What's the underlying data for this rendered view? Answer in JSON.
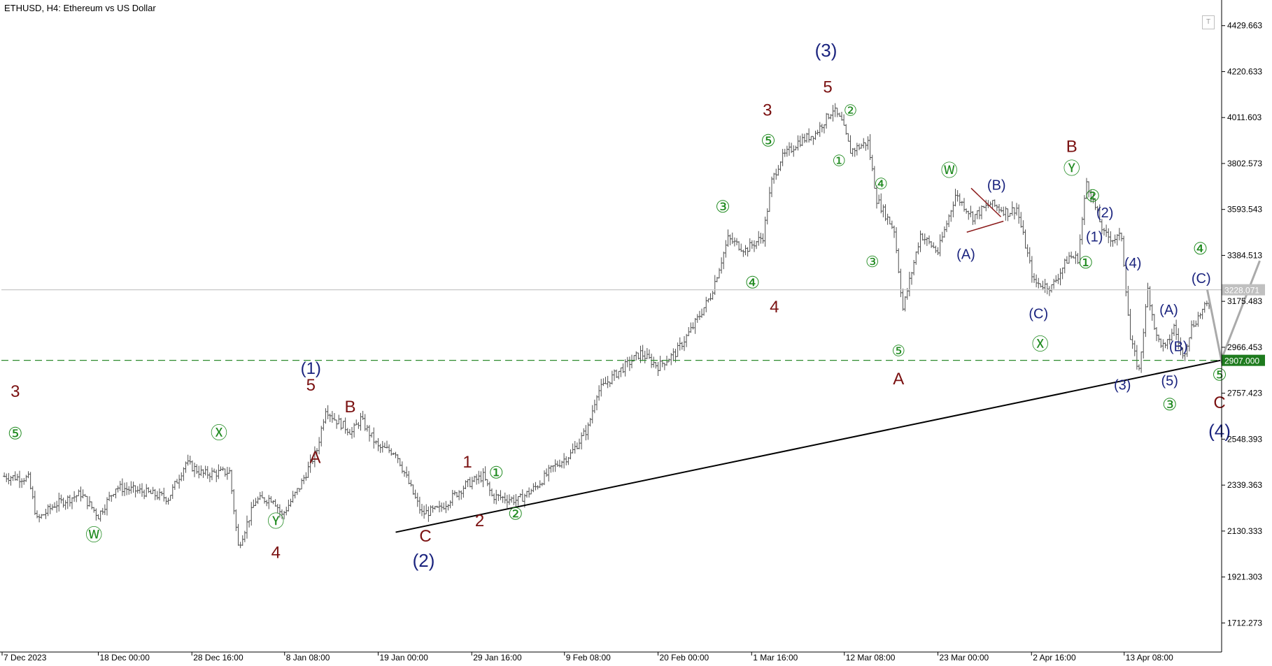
{
  "header": {
    "title": "ETHUSD, H4:  Ethereum vs US Dollar"
  },
  "toolbar": {
    "toggle_label": "T"
  },
  "chart_data": {
    "type": "candlestick",
    "title": "ETHUSD, H4:  Ethereum vs US Dollar",
    "symbol": "ETHUSD",
    "timeframe": "H4",
    "ylim": [
      1580,
      4540
    ],
    "y_ticks": [
      "4429.663",
      "4220.633",
      "4011.603",
      "3802.573",
      "3593.543",
      "3384.513",
      "3175.483",
      "2966.453",
      "2757.423",
      "2548.393",
      "2339.363",
      "2130.333",
      "1921.303",
      "1712.273"
    ],
    "x_ticks": [
      {
        "label": "7 Dec 2023",
        "x": 0
      },
      {
        "label": "18 Dec 00:00",
        "x": 11
      },
      {
        "label": "28 Dec 16:00",
        "x": 21.7
      },
      {
        "label": "8 Jan 08:00",
        "x": 32.3
      },
      {
        "label": "19 Jan 00:00",
        "x": 43
      },
      {
        "label": "29 Jan 16:00",
        "x": 53.7
      },
      {
        "label": "9 Feb 08:00",
        "x": 64.3
      },
      {
        "label": "20 Feb 00:00",
        "x": 75
      },
      {
        "label": "1 Mar 16:00",
        "x": 85.7
      },
      {
        "label": "12 Mar 08:00",
        "x": 96.3
      },
      {
        "label": "23 Mar 00:00",
        "x": 107
      },
      {
        "label": "2 Apr 16:00",
        "x": 117.7
      },
      {
        "label": "13 Apr 08:00",
        "x": 128.3
      }
    ],
    "x_range": [
      -0.5,
      143.8
    ],
    "price_path": [
      [
        0,
        2380
      ],
      [
        3,
        2370
      ],
      [
        4,
        2180
      ],
      [
        6,
        2250
      ],
      [
        9,
        2300
      ],
      [
        11,
        2200
      ],
      [
        13,
        2330
      ],
      [
        16,
        2310
      ],
      [
        19,
        2280
      ],
      [
        21,
        2440
      ],
      [
        23,
        2390
      ],
      [
        26,
        2400
      ],
      [
        27,
        2060
      ],
      [
        29,
        2270
      ],
      [
        31,
        2280
      ],
      [
        32,
        2200
      ],
      [
        34,
        2330
      ],
      [
        36,
        2500
      ],
      [
        37,
        2690
      ],
      [
        38,
        2640
      ],
      [
        40,
        2580
      ],
      [
        41,
        2640
      ],
      [
        43,
        2510
      ],
      [
        45,
        2490
      ],
      [
        47,
        2300
      ],
      [
        48,
        2210
      ],
      [
        50,
        2230
      ],
      [
        53,
        2340
      ],
      [
        55,
        2380
      ],
      [
        56,
        2290
      ],
      [
        59,
        2270
      ],
      [
        61,
        2330
      ],
      [
        63,
        2420
      ],
      [
        65,
        2480
      ],
      [
        67,
        2600
      ],
      [
        68,
        2760
      ],
      [
        70,
        2840
      ],
      [
        73,
        2940
      ],
      [
        75,
        2880
      ],
      [
        77,
        2940
      ],
      [
        79,
        3060
      ],
      [
        81,
        3200
      ],
      [
        83,
        3460
      ],
      [
        85,
        3410
      ],
      [
        87,
        3470
      ],
      [
        88,
        3720
      ],
      [
        89,
        3820
      ],
      [
        91,
        3900
      ],
      [
        93,
        3940
      ],
      [
        95,
        4050
      ],
      [
        96,
        3990
      ],
      [
        97,
        3860
      ],
      [
        99,
        3900
      ],
      [
        100,
        3640
      ],
      [
        102,
        3500
      ],
      [
        103,
        3140
      ],
      [
        105,
        3480
      ],
      [
        107,
        3400
      ],
      [
        109,
        3660
      ],
      [
        111,
        3560
      ],
      [
        113,
        3620
      ],
      [
        115,
        3580
      ],
      [
        116,
        3600
      ],
      [
        118,
        3260
      ],
      [
        120,
        3240
      ],
      [
        122,
        3380
      ],
      [
        123,
        3370
      ],
      [
        124,
        3720
      ],
      [
        126,
        3480
      ],
      [
        127,
        3460
      ],
      [
        128,
        3470
      ],
      [
        129,
        3000
      ],
      [
        130,
        2860
      ],
      [
        131,
        3230
      ],
      [
        132,
        3010
      ],
      [
        133,
        2960
      ],
      [
        134,
        3060
      ],
      [
        135,
        2920
      ],
      [
        136,
        3060
      ],
      [
        137,
        3120
      ],
      [
        138,
        3170
      ]
    ],
    "lines": [
      {
        "name": "trendline",
        "points": [
          [
            45,
            2125
          ],
          [
            139.7,
            2910
          ]
        ],
        "color": "#000000",
        "style": "solid"
      },
      {
        "name": "projection",
        "points": [
          [
            137.8,
            3228
          ],
          [
            139.4,
            2910
          ],
          [
            143.8,
            3360
          ]
        ],
        "color": "#aaaaaa",
        "style": "solid"
      },
      {
        "name": "triangle-upper",
        "points": [
          [
            110.8,
            3690
          ],
          [
            114.2,
            3560
          ]
        ],
        "color": "#8b1a1a",
        "style": "solid"
      },
      {
        "name": "triangle-lower",
        "points": [
          [
            110.3,
            3490
          ],
          [
            114.5,
            3540
          ]
        ],
        "color": "#8b1a1a",
        "style": "solid"
      }
    ],
    "horizontal_lines": [
      {
        "label": "3228.071",
        "value": 3228.071,
        "color": "#c8c8c8",
        "style": "solid",
        "label_bg": "#c0c0c0"
      },
      {
        "label": "2907.000",
        "value": 2907.0,
        "color": "#2e8b2e",
        "style": "dashed",
        "label_bg": "#1e7b1e"
      }
    ],
    "wave_labels": [
      {
        "text": "3",
        "x": 1.5,
        "y": 2760,
        "color": "#7a1010",
        "size": 24
      },
      {
        "text": "⑤",
        "x": 1.5,
        "y": 2568,
        "color": "#1f8a1f",
        "size": 24
      },
      {
        "text": "Ⓦ",
        "x": 10.5,
        "y": 2108,
        "color": "#1f8a1f",
        "size": 24
      },
      {
        "text": "Ⓧ",
        "x": 24.8,
        "y": 2572,
        "color": "#1f8a1f",
        "size": 24
      },
      {
        "text": "Ⓨ",
        "x": 31.3,
        "y": 2170,
        "color": "#1f8a1f",
        "size": 24
      },
      {
        "text": "4",
        "x": 31.3,
        "y": 2028,
        "color": "#7a1010",
        "size": 24
      },
      {
        "text": "(1)",
        "x": 35.3,
        "y": 2865,
        "color": "#1a237e",
        "size": 24
      },
      {
        "text": "5",
        "x": 35.3,
        "y": 2790,
        "color": "#7a1010",
        "size": 24
      },
      {
        "text": "A",
        "x": 35.8,
        "y": 2460,
        "color": "#7a1010",
        "size": 24
      },
      {
        "text": "B",
        "x": 39.8,
        "y": 2690,
        "color": "#7a1010",
        "size": 24
      },
      {
        "text": "C",
        "x": 48.4,
        "y": 2102,
        "color": "#7a1010",
        "size": 24
      },
      {
        "text": "(2)",
        "x": 48.2,
        "y": 1990,
        "color": "#1a237e",
        "size": 26
      },
      {
        "text": "1",
        "x": 53.2,
        "y": 2440,
        "color": "#7a1010",
        "size": 24
      },
      {
        "text": "①",
        "x": 56.5,
        "y": 2390,
        "color": "#1f8a1f",
        "size": 24
      },
      {
        "text": "2",
        "x": 54.6,
        "y": 2173,
        "color": "#7a1010",
        "size": 24
      },
      {
        "text": "②",
        "x": 58.7,
        "y": 2203,
        "color": "#1f8a1f",
        "size": 24
      },
      {
        "text": "③",
        "x": 82.4,
        "y": 3600,
        "color": "#1f8a1f",
        "size": 24
      },
      {
        "text": "④",
        "x": 85.8,
        "y": 3255,
        "color": "#1f8a1f",
        "size": 24
      },
      {
        "text": "4",
        "x": 88.3,
        "y": 3145,
        "color": "#7a1010",
        "size": 24
      },
      {
        "text": "⑤",
        "x": 87.6,
        "y": 3900,
        "color": "#1f8a1f",
        "size": 24
      },
      {
        "text": "3",
        "x": 87.5,
        "y": 4040,
        "color": "#7a1010",
        "size": 24
      },
      {
        "text": "5",
        "x": 94.4,
        "y": 4145,
        "color": "#7a1010",
        "size": 24
      },
      {
        "text": "(3)",
        "x": 94.2,
        "y": 4310,
        "color": "#1a237e",
        "size": 26
      },
      {
        "text": "②",
        "x": 97.0,
        "y": 4038,
        "color": "#1f8a1f",
        "size": 22
      },
      {
        "text": "①",
        "x": 95.7,
        "y": 3810,
        "color": "#1f8a1f",
        "size": 22
      },
      {
        "text": "④",
        "x": 100.5,
        "y": 3705,
        "color": "#1f8a1f",
        "size": 22
      },
      {
        "text": "③",
        "x": 99.5,
        "y": 3350,
        "color": "#1f8a1f",
        "size": 22
      },
      {
        "text": "⑤",
        "x": 102.5,
        "y": 2945,
        "color": "#1f8a1f",
        "size": 22
      },
      {
        "text": "A",
        "x": 102.5,
        "y": 2818,
        "color": "#7a1010",
        "size": 24
      },
      {
        "text": "Ⓦ",
        "x": 108.3,
        "y": 3765,
        "color": "#1f8a1f",
        "size": 24
      },
      {
        "text": "(B)",
        "x": 113.7,
        "y": 3700,
        "color": "#1a237e",
        "size": 20
      },
      {
        "text": "(A)",
        "x": 110.2,
        "y": 3385,
        "color": "#1a237e",
        "size": 20
      },
      {
        "text": "(C)",
        "x": 118.5,
        "y": 3115,
        "color": "#1a237e",
        "size": 20
      },
      {
        "text": "Ⓧ",
        "x": 118.7,
        "y": 2975,
        "color": "#1f8a1f",
        "size": 24
      },
      {
        "text": "B",
        "x": 122.3,
        "y": 3875,
        "color": "#7a1010",
        "size": 24
      },
      {
        "text": "Ⓨ",
        "x": 122.3,
        "y": 3775,
        "color": "#1f8a1f",
        "size": 24
      },
      {
        "text": "②",
        "x": 124.7,
        "y": 3650,
        "color": "#1f8a1f",
        "size": 24
      },
      {
        "text": "(2)",
        "x": 126.1,
        "y": 3575,
        "color": "#1a237e",
        "size": 20
      },
      {
        "text": "(1)",
        "x": 124.9,
        "y": 3465,
        "color": "#1a237e",
        "size": 20
      },
      {
        "text": "①",
        "x": 123.9,
        "y": 3345,
        "color": "#1f8a1f",
        "size": 24
      },
      {
        "text": "(4)",
        "x": 129.3,
        "y": 3345,
        "color": "#1a237e",
        "size": 20
      },
      {
        "text": "(3)",
        "x": 128.1,
        "y": 2790,
        "color": "#1a237e",
        "size": 20
      },
      {
        "text": "(A)",
        "x": 133.4,
        "y": 3132,
        "color": "#1a237e",
        "size": 20
      },
      {
        "text": "(B)",
        "x": 134.5,
        "y": 2965,
        "color": "#1a237e",
        "size": 20
      },
      {
        "text": "(5)",
        "x": 133.5,
        "y": 2810,
        "color": "#1a237e",
        "size": 20
      },
      {
        "text": "③",
        "x": 133.5,
        "y": 2700,
        "color": "#1f8a1f",
        "size": 24
      },
      {
        "text": "④",
        "x": 137.0,
        "y": 3410,
        "color": "#1f8a1f",
        "size": 24
      },
      {
        "text": "(C)",
        "x": 137.1,
        "y": 3275,
        "color": "#1a237e",
        "size": 20
      },
      {
        "text": "⑤",
        "x": 139.2,
        "y": 2835,
        "color": "#1f8a1f",
        "size": 24
      },
      {
        "text": "C",
        "x": 139.2,
        "y": 2710,
        "color": "#7a1010",
        "size": 24
      },
      {
        "text": "(4)",
        "x": 139.2,
        "y": 2580,
        "color": "#1a237e",
        "size": 26
      }
    ]
  },
  "colors": {
    "candle": "#4f4f4f",
    "axis": "#000000",
    "axis_text": "#000000"
  }
}
